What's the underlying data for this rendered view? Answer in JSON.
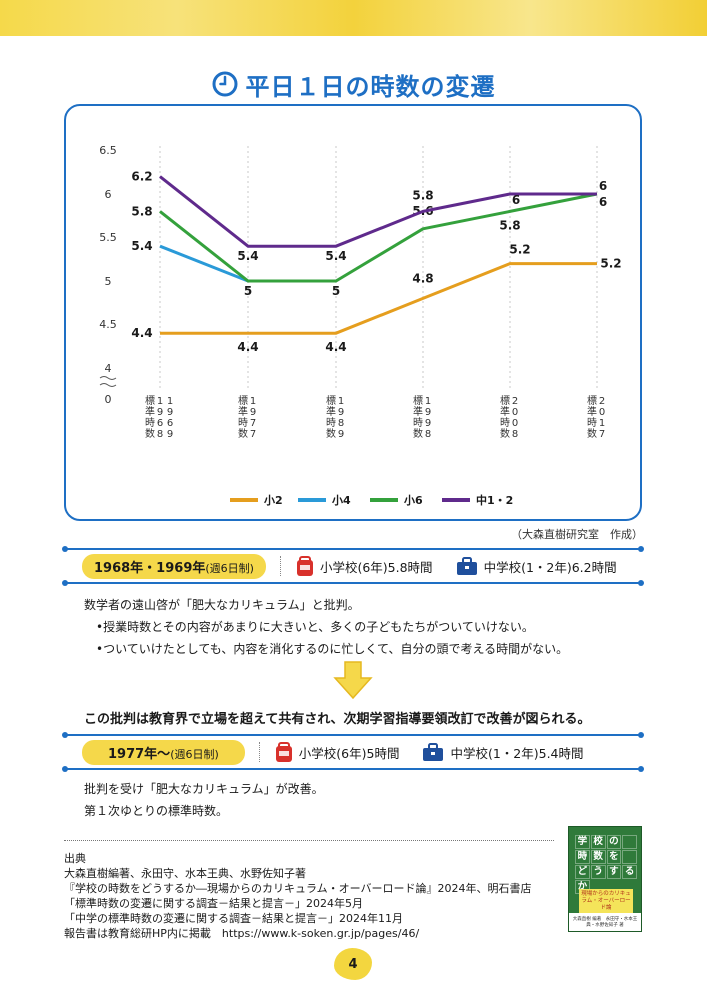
{
  "title": "平日１日の時数の変遷",
  "chart_data": {
    "type": "line",
    "title": "",
    "xlabel": "",
    "ylabel": "",
    "ylim": [
      4,
      6.5
    ],
    "y_ticks": [
      "6.5",
      "6",
      "5.5",
      "5",
      "4.5",
      "4",
      "0"
    ],
    "y_axis_break": true,
    "grid": true,
    "categories": [
      "標準時数1968・1969",
      "標準時数1977",
      "標準時数1989",
      "標準時数1998",
      "標準時数2008",
      "標準時数2017"
    ],
    "category_parts": [
      {
        "label": "標準時数",
        "year": "1968・1969",
        "cols": [
          "1968",
          "1969"
        ]
      },
      {
        "label": "標準時数",
        "year": "1977",
        "cols": [
          "1977"
        ]
      },
      {
        "label": "標準時数",
        "year": "1989",
        "cols": [
          "1989"
        ]
      },
      {
        "label": "標準時数",
        "year": "1998",
        "cols": [
          "1998"
        ]
      },
      {
        "label": "標準時数",
        "year": "2008",
        "cols": [
          "2008"
        ]
      },
      {
        "label": "標準時数",
        "year": "2017",
        "cols": [
          "2017"
        ]
      }
    ],
    "legend_position": "bottom",
    "series": [
      {
        "name": "小2",
        "color": "#e59e1e",
        "values": [
          4.4,
          4.4,
          4.4,
          4.8,
          5.2,
          5.2
        ],
        "labels": [
          "4.4",
          "4.4",
          "4.4",
          "4.8",
          "5.2",
          "5.2"
        ]
      },
      {
        "name": "小4",
        "color": "#2a9ad8",
        "values": [
          5.4,
          5,
          null,
          null,
          null,
          null
        ],
        "labels": [
          "5.4",
          "",
          "",
          "",
          "",
          ""
        ]
      },
      {
        "name": "小6",
        "color": "#34a13c",
        "values": [
          5.8,
          5,
          5,
          5.6,
          5.8,
          6
        ],
        "labels": [
          "5.8",
          "5",
          "5",
          "5.6",
          "5.8",
          "6"
        ]
      },
      {
        "name": "中1・2",
        "color": "#5f2a8c",
        "values": [
          6.2,
          5.4,
          5.4,
          5.8,
          6,
          6
        ],
        "labels": [
          "6.2",
          "5.4",
          "5.4",
          "5.8",
          "6",
          "6"
        ]
      }
    ]
  },
  "credit": "（大森直樹研究室　作成）",
  "era1": {
    "pill": "1968年・1969年",
    "pill_note": "(週6日制)",
    "elementary": "小学校(6年)5.8時間",
    "junior": "中学校(1・2年)6.2時間"
  },
  "era1_text": {
    "lead": "数学者の遠山啓が「肥大なカリキュラム」と批判。",
    "bullet1": "•授業時数とその内容があまりに大きいと、多くの子どもたちがついていけない。",
    "bullet2": "•ついていけたとしても、内容を消化するのに忙しくて、自分の頭で考える時間がない。"
  },
  "statement": "この批判は教育界で立場を超えて共有され、次期学習指導要領改訂で改善が図られる。",
  "era2": {
    "pill": "1977年～",
    "pill_note": "(週6日制)",
    "elementary": "小学校(6年)5時間",
    "junior": "中学校(1・2年)5.4時間"
  },
  "era2_text": {
    "line1": "批判を受け「肥大なカリキュラム」が改善。",
    "line2": "第１次ゆとりの標準時数。"
  },
  "refs": {
    "heading": "出典",
    "lines": [
      "大森直樹編著、永田守、水本王典、水野佐知子著",
      "『学校の時数をどうするか―現場からのカリキュラム・オーバーロード論』2024年、明石書店",
      "「標準時数の変遷に関する調査－結果と提言－」2024年5月",
      "「中学の標準時数の変遷に関する調査－結果と提言－」2024年11月",
      "報告書は教育総研HP内に掲載　https://www.k-soken.gr.jp/pages/46/"
    ]
  },
  "book": {
    "title_chars": [
      "学",
      "校",
      "の",
      "",
      "時",
      "数",
      "を",
      "",
      "ど",
      "う",
      "す",
      "る",
      "か"
    ],
    "subtitle": "現場からのカリキュラム・オーバーロード論",
    "authors": "大森直樹 編著　永田守・水本王典・水野佐知子 著"
  },
  "page_number": "4",
  "colors": {
    "accent": "#1e6fc4",
    "highlight": "#f5d84a",
    "elementary_icon": "#d8312b",
    "junior_icon": "#1f4f9c"
  }
}
